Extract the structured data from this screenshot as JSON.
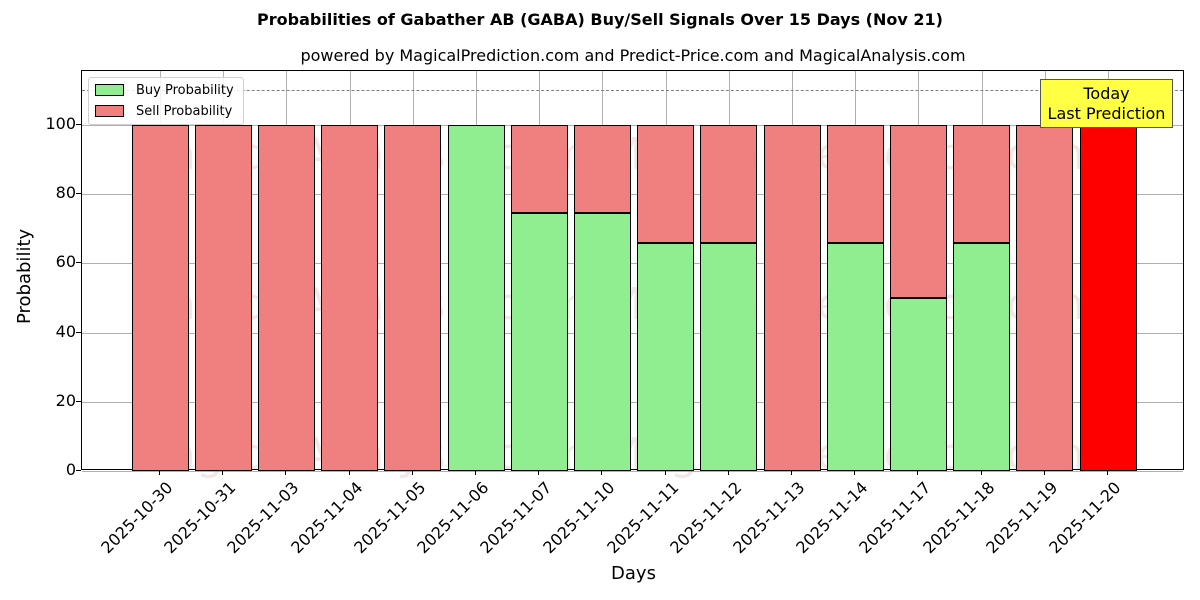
{
  "chart_data": {
    "type": "bar",
    "stacked": true,
    "title": "Probabilities of Gabather AB (GABA) Buy/Sell Signals Over 15 Days (Nov 21)",
    "subtitle": "powered by MagicalPrediction.com and Predict-Price.com and MagicalAnalysis.com",
    "xlabel": "Days",
    "ylabel": "Probability",
    "ylim": [
      0,
      115
    ],
    "yticks": [
      0,
      20,
      40,
      60,
      80,
      100
    ],
    "grid": true,
    "legend_position": "upper left",
    "categories": [
      "2025-10-30",
      "2025-10-31",
      "2025-11-03",
      "2025-11-04",
      "2025-11-05",
      "2025-11-06",
      "2025-11-07",
      "2025-11-10",
      "2025-11-11",
      "2025-11-12",
      "2025-11-13",
      "2025-11-14",
      "2025-11-17",
      "2025-11-18",
      "2025-11-19",
      "2025-11-20"
    ],
    "series": [
      {
        "name": "Buy Probability",
        "color": "#90ee90",
        "values": [
          0,
          0,
          0,
          0,
          0,
          100,
          74.5,
          74.5,
          66,
          66,
          0,
          66,
          50,
          66,
          0,
          0
        ]
      },
      {
        "name": "Sell Probability",
        "color": "#f08080",
        "values": [
          100,
          100,
          100,
          100,
          100,
          0,
          25.5,
          25.5,
          34,
          34,
          100,
          34,
          50,
          34,
          100,
          100
        ]
      }
    ],
    "highlight": {
      "category": "2025-11-20",
      "color": "#ff0000",
      "label": "Today\nLast Prediction"
    },
    "reference_line": {
      "y": 110,
      "style": "dashed",
      "color": "#808080"
    },
    "watermarks": [
      "MagicalAnalysis.com",
      "MagicalPrediction.com"
    ]
  },
  "legend": {
    "buy": "Buy Probability",
    "sell": "Sell Probability"
  },
  "annotation": {
    "line1": "Today",
    "line2": "Last Prediction"
  },
  "yticks_labels": [
    "0",
    "20",
    "40",
    "60",
    "80",
    "100"
  ]
}
